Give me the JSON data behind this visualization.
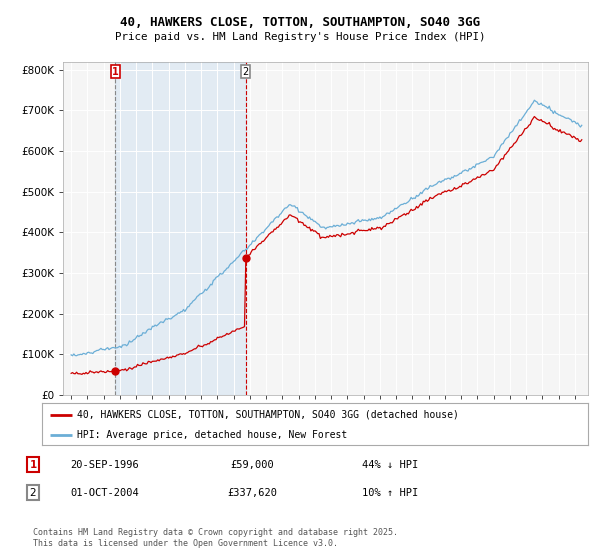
{
  "title": "40, HAWKERS CLOSE, TOTTON, SOUTHAMPTON, SO40 3GG",
  "subtitle": "Price paid vs. HM Land Registry's House Price Index (HPI)",
  "legend_line1": "40, HAWKERS CLOSE, TOTTON, SOUTHAMPTON, SO40 3GG (detached house)",
  "legend_line2": "HPI: Average price, detached house, New Forest",
  "sale1_date": "20-SEP-1996",
  "sale1_price": "£59,000",
  "sale1_hpi": "44% ↓ HPI",
  "sale2_date": "01-OCT-2004",
  "sale2_price": "£337,620",
  "sale2_hpi": "10% ↑ HPI",
  "footer": "Contains HM Land Registry data © Crown copyright and database right 2025.\nThis data is licensed under the Open Government Licence v3.0.",
  "hpi_color": "#6baed6",
  "price_color": "#cc0000",
  "sale1_x": 1996.72,
  "sale1_y": 59000,
  "sale2_x": 2004.75,
  "sale2_y": 337620,
  "ylim": [
    0,
    820000
  ],
  "xlim": [
    1993.5,
    2025.8
  ],
  "yticks": [
    0,
    100000,
    200000,
    300000,
    400000,
    500000,
    600000,
    700000,
    800000
  ],
  "xticks": [
    1994,
    1995,
    1996,
    1997,
    1998,
    1999,
    2000,
    2001,
    2002,
    2003,
    2004,
    2005,
    2006,
    2007,
    2008,
    2009,
    2010,
    2011,
    2012,
    2013,
    2014,
    2015,
    2016,
    2017,
    2018,
    2019,
    2020,
    2021,
    2022,
    2023,
    2024,
    2025
  ],
  "background_color": "#ffffff",
  "plot_bg_color": "#f5f5f5",
  "shade_color": "#ddeeff"
}
